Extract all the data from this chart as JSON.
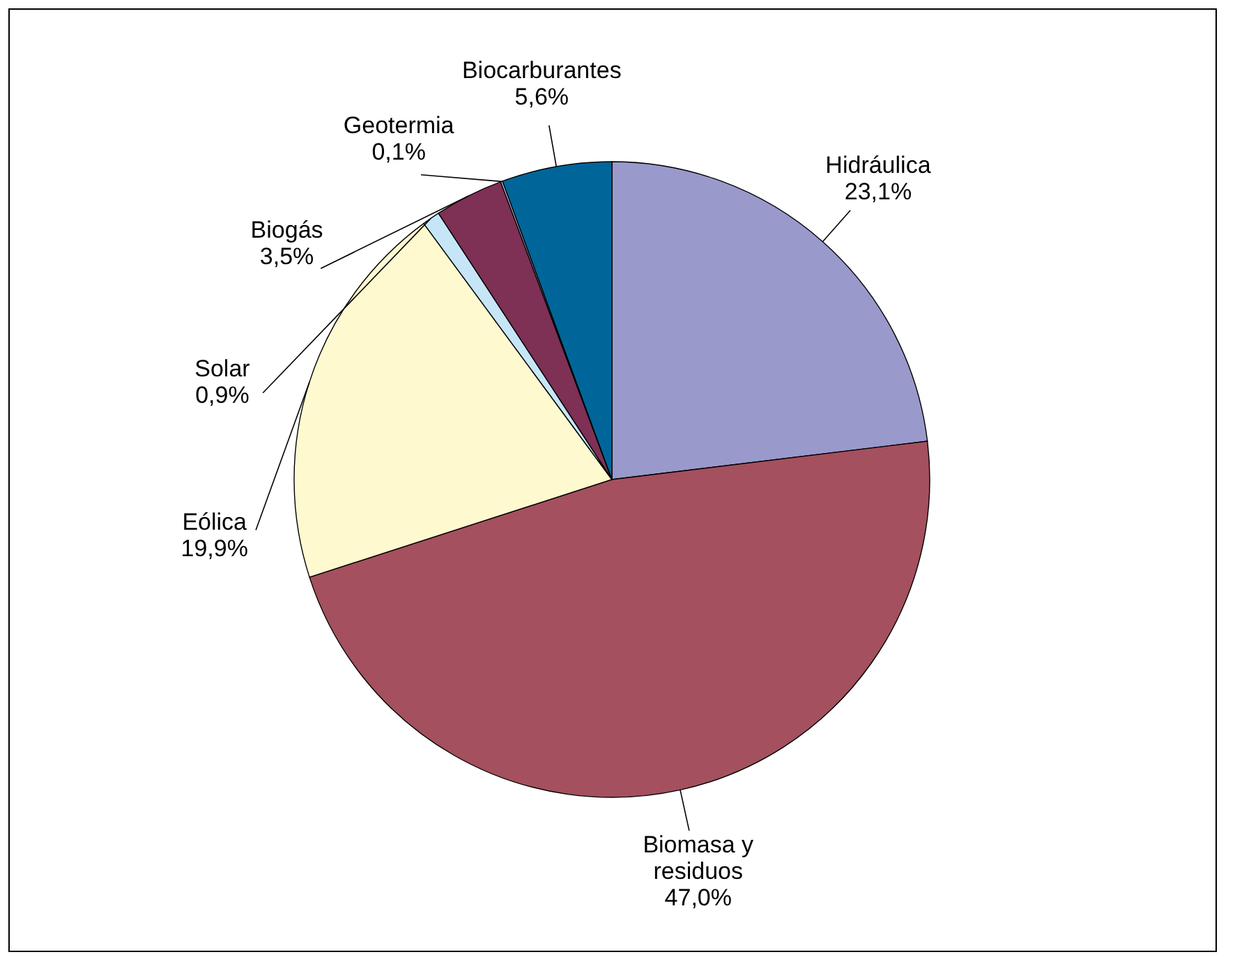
{
  "chart_data": {
    "type": "pie",
    "categories": [
      "Hidráulica",
      "Biomasa y residuos",
      "Eólica",
      "Solar",
      "Biogás",
      "Geotermia",
      "Biocarburantes"
    ],
    "values": [
      23.1,
      47.0,
      19.9,
      0.9,
      3.5,
      0.1,
      5.6
    ],
    "colors": [
      "#9999cc",
      "#a4505e",
      "#fff9d0",
      "#c6e6f8",
      "#7e3055",
      "#c0c0e0",
      "#006699"
    ],
    "value_labels": [
      "23,1%",
      "47,0%",
      "19,9%",
      "0,9%",
      "3,5%",
      "0,1%",
      "5,6%"
    ]
  }
}
